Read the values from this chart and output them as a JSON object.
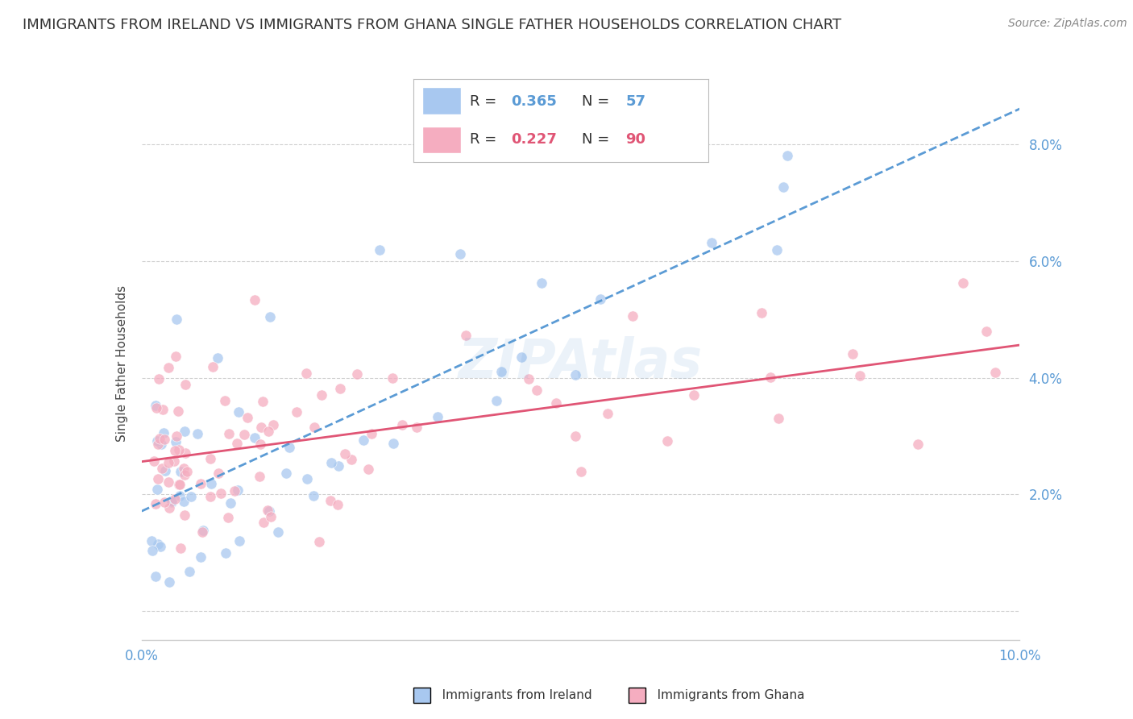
{
  "title": "IMMIGRANTS FROM IRELAND VS IMMIGRANTS FROM GHANA SINGLE FATHER HOUSEHOLDS CORRELATION CHART",
  "source": "Source: ZipAtlas.com",
  "ylabel": "Single Father Households",
  "xlim": [
    0.0,
    0.1
  ],
  "ylim": [
    -0.005,
    0.09
  ],
  "ireland_R": 0.365,
  "ireland_N": 57,
  "ghana_R": 0.227,
  "ghana_N": 90,
  "ireland_color": "#a8c8f0",
  "ghana_color": "#f5adc0",
  "ireland_line_color": "#5b9bd5",
  "ghana_line_color": "#e05575",
  "watermark": "ZIPAtlas",
  "background_color": "#ffffff",
  "grid_color": "#d0d0d0",
  "axis_label_color": "#5b9bd5",
  "title_color": "#333333",
  "title_fontsize": 13,
  "ylabel_fontsize": 11,
  "tick_fontsize": 12,
  "source_fontsize": 10,
  "legend_fontsize": 13
}
